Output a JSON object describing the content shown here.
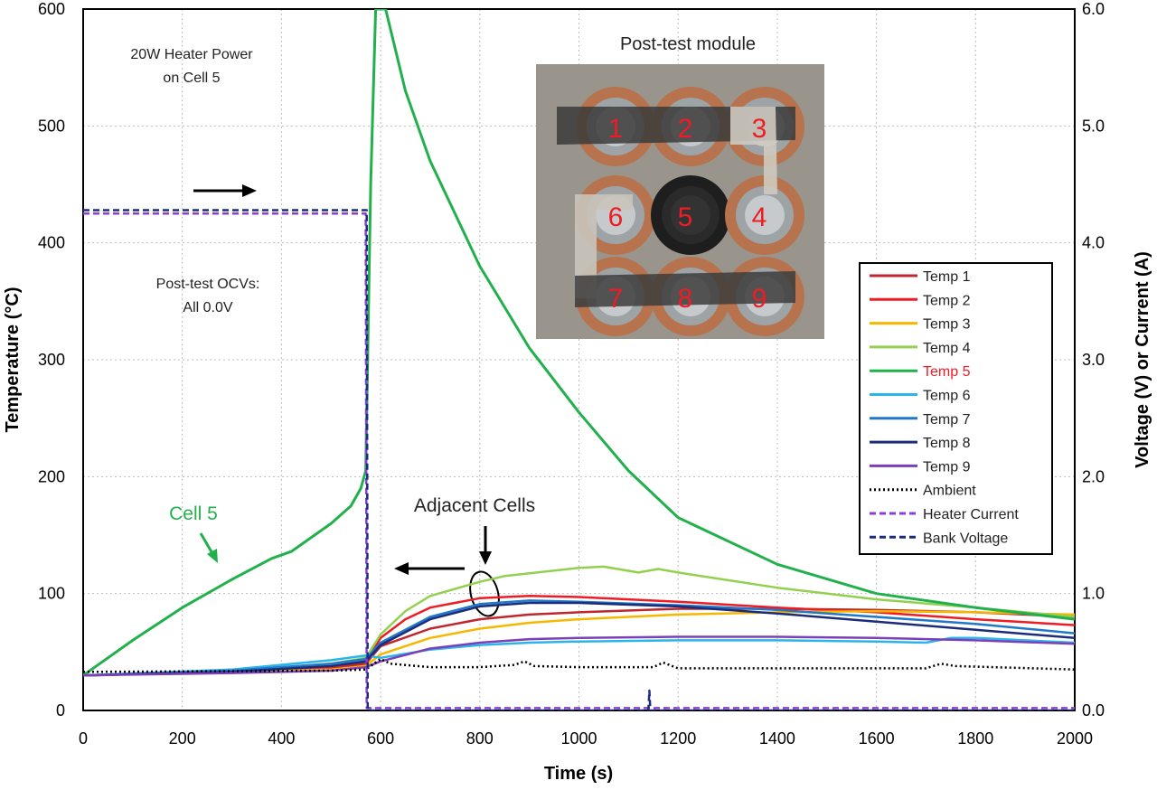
{
  "chart_data": {
    "type": "line",
    "xlabel": "Time (s)",
    "ylabel": "Temperature (°C)",
    "y2label": "Voltage (V) or Current (A)",
    "xlim": [
      0,
      2000
    ],
    "ylim": [
      0,
      600
    ],
    "y2lim": [
      0,
      6
    ],
    "x_ticks": [
      0,
      200,
      400,
      600,
      800,
      1000,
      1200,
      1400,
      1600,
      1800,
      2000
    ],
    "y_ticks": [
      0,
      100,
      200,
      300,
      400,
      500,
      600
    ],
    "y2_tick_labels": [
      "0.0",
      "1.0",
      "2.0",
      "3.0",
      "4.0",
      "5.0",
      "6.0"
    ],
    "grid": true,
    "legend_position": "right",
    "series": [
      {
        "name": "Temp 1",
        "axis": "left",
        "color": "#c0262d",
        "dash": "solid",
        "points": [
          [
            0,
            30
          ],
          [
            300,
            33
          ],
          [
            500,
            36
          ],
          [
            570,
            40
          ],
          [
            600,
            55
          ],
          [
            700,
            70
          ],
          [
            800,
            78
          ],
          [
            900,
            82
          ],
          [
            1000,
            84
          ],
          [
            1200,
            87
          ],
          [
            1400,
            87
          ],
          [
            1600,
            86
          ],
          [
            1800,
            84
          ],
          [
            2000,
            80
          ]
        ]
      },
      {
        "name": "Temp 2",
        "axis": "left",
        "color": "#ee1c25",
        "dash": "solid",
        "points": [
          [
            0,
            30
          ],
          [
            300,
            33
          ],
          [
            500,
            37
          ],
          [
            570,
            42
          ],
          [
            600,
            62
          ],
          [
            650,
            78
          ],
          [
            700,
            88
          ],
          [
            800,
            96
          ],
          [
            900,
            98
          ],
          [
            1000,
            97
          ],
          [
            1200,
            93
          ],
          [
            1400,
            88
          ],
          [
            1600,
            84
          ],
          [
            1800,
            78
          ],
          [
            2000,
            73
          ]
        ]
      },
      {
        "name": "Temp 3",
        "axis": "left",
        "color": "#f5b700",
        "dash": "solid",
        "points": [
          [
            0,
            30
          ],
          [
            300,
            33
          ],
          [
            500,
            35
          ],
          [
            570,
            38
          ],
          [
            600,
            48
          ],
          [
            700,
            62
          ],
          [
            800,
            70
          ],
          [
            900,
            75
          ],
          [
            1000,
            78
          ],
          [
            1200,
            82
          ],
          [
            1400,
            84
          ],
          [
            1600,
            85
          ],
          [
            1800,
            84
          ],
          [
            2000,
            82
          ]
        ]
      },
      {
        "name": "Temp 4",
        "axis": "left",
        "color": "#92d050",
        "dash": "solid",
        "points": [
          [
            0,
            30
          ],
          [
            300,
            34
          ],
          [
            500,
            40
          ],
          [
            570,
            45
          ],
          [
            600,
            65
          ],
          [
            650,
            85
          ],
          [
            700,
            98
          ],
          [
            800,
            110
          ],
          [
            850,
            115
          ],
          [
            1000,
            122
          ],
          [
            1050,
            123
          ],
          [
            1120,
            118
          ],
          [
            1160,
            121
          ],
          [
            1200,
            118
          ],
          [
            1400,
            105
          ],
          [
            1600,
            95
          ],
          [
            1800,
            88
          ],
          [
            2000,
            80
          ]
        ]
      },
      {
        "name": "Temp 5",
        "axis": "left",
        "color": "#22b04c",
        "dash": "solid",
        "points": [
          [
            0,
            30
          ],
          [
            50,
            45
          ],
          [
            100,
            60
          ],
          [
            200,
            88
          ],
          [
            300,
            112
          ],
          [
            380,
            130
          ],
          [
            420,
            136
          ],
          [
            500,
            160
          ],
          [
            540,
            175
          ],
          [
            560,
            190
          ],
          [
            570,
            205
          ],
          [
            580,
            450
          ],
          [
            590,
            600
          ],
          [
            610,
            600
          ],
          [
            650,
            530
          ],
          [
            700,
            470
          ],
          [
            800,
            380
          ],
          [
            900,
            310
          ],
          [
            1000,
            255
          ],
          [
            1100,
            205
          ],
          [
            1200,
            165
          ],
          [
            1400,
            125
          ],
          [
            1600,
            100
          ],
          [
            1800,
            88
          ],
          [
            2000,
            78
          ]
        ]
      },
      {
        "name": "Temp 6",
        "axis": "left",
        "color": "#29b5ea",
        "dash": "solid",
        "points": [
          [
            0,
            30
          ],
          [
            300,
            35
          ],
          [
            500,
            43
          ],
          [
            570,
            47
          ],
          [
            600,
            45
          ],
          [
            700,
            52
          ],
          [
            800,
            56
          ],
          [
            900,
            58
          ],
          [
            1000,
            59
          ],
          [
            1200,
            60
          ],
          [
            1400,
            60
          ],
          [
            1600,
            59
          ],
          [
            1700,
            58
          ],
          [
            1750,
            62
          ],
          [
            1800,
            62
          ],
          [
            2000,
            58
          ]
        ]
      },
      {
        "name": "Temp 7",
        "axis": "left",
        "color": "#1f78c8",
        "dash": "solid",
        "points": [
          [
            0,
            30
          ],
          [
            300,
            34
          ],
          [
            500,
            40
          ],
          [
            570,
            44
          ],
          [
            600,
            58
          ],
          [
            700,
            80
          ],
          [
            800,
            91
          ],
          [
            900,
            94
          ],
          [
            1000,
            93
          ],
          [
            1200,
            90
          ],
          [
            1400,
            86
          ],
          [
            1600,
            80
          ],
          [
            1800,
            74
          ],
          [
            2000,
            66
          ]
        ]
      },
      {
        "name": "Temp 8",
        "axis": "left",
        "color": "#1b2d7a",
        "dash": "solid",
        "points": [
          [
            0,
            30
          ],
          [
            300,
            33
          ],
          [
            500,
            38
          ],
          [
            570,
            42
          ],
          [
            600,
            56
          ],
          [
            700,
            78
          ],
          [
            800,
            89
          ],
          [
            900,
            92
          ],
          [
            1000,
            92
          ],
          [
            1200,
            89
          ],
          [
            1400,
            83
          ],
          [
            1600,
            76
          ],
          [
            1800,
            69
          ],
          [
            2000,
            62
          ]
        ]
      },
      {
        "name": "Temp 9",
        "axis": "left",
        "color": "#7d3fb8",
        "dash": "solid",
        "points": [
          [
            0,
            30
          ],
          [
            300,
            32
          ],
          [
            500,
            34
          ],
          [
            570,
            37
          ],
          [
            600,
            42
          ],
          [
            700,
            53
          ],
          [
            800,
            58
          ],
          [
            900,
            61
          ],
          [
            1000,
            62
          ],
          [
            1200,
            63
          ],
          [
            1400,
            63
          ],
          [
            1600,
            62
          ],
          [
            1800,
            60
          ],
          [
            2000,
            57
          ]
        ]
      },
      {
        "name": "Ambient",
        "axis": "left",
        "color": "#000000",
        "dash": "dotted",
        "points": [
          [
            0,
            33
          ],
          [
            500,
            34
          ],
          [
            570,
            35
          ],
          [
            600,
            44
          ],
          [
            620,
            40
          ],
          [
            700,
            37
          ],
          [
            800,
            37
          ],
          [
            870,
            39
          ],
          [
            890,
            42
          ],
          [
            910,
            38
          ],
          [
            1000,
            37
          ],
          [
            1150,
            37
          ],
          [
            1170,
            41
          ],
          [
            1200,
            36
          ],
          [
            1700,
            36
          ],
          [
            1730,
            40
          ],
          [
            1760,
            38
          ],
          [
            2000,
            35
          ]
        ]
      },
      {
        "name": "Heater Current",
        "axis": "right",
        "color": "#8b3fd9",
        "dash": "dashed",
        "points": [
          [
            0,
            4.25
          ],
          [
            570,
            4.25
          ],
          [
            572,
            0.02
          ],
          [
            2000,
            0.02
          ]
        ]
      },
      {
        "name": "Bank Voltage",
        "axis": "right",
        "color": "#1b2d7a",
        "dash": "dashed",
        "points": [
          [
            0,
            4.28
          ],
          [
            572,
            4.28
          ],
          [
            574,
            0.0
          ],
          [
            1140,
            0.0
          ],
          [
            1142,
            0.17
          ],
          [
            1144,
            0.0
          ],
          [
            2000,
            0.0
          ]
        ]
      }
    ],
    "legend_entries": [
      "Temp 1",
      "Temp 2",
      "Temp 3",
      "Temp 4",
      "Temp 5",
      "Temp 6",
      "Temp 7",
      "Temp 8",
      "Temp 9",
      "Ambient",
      "Heater Current",
      "Bank Voltage"
    ],
    "highlight_legend_entry": "Temp 5",
    "highlight_color": "#ee1c25",
    "annotations": {
      "heater_note_line1": "20W Heater Power",
      "heater_note_line2": "on Cell 5",
      "ocv_note_line1": "Post-test OCVs:",
      "ocv_note_line2": "All 0.0V",
      "cell5_label": "Cell 5",
      "adjacent_label": "Adjacent Cells",
      "inset_title": "Post-test module"
    },
    "inset_cell_numbers": [
      "1",
      "2",
      "3",
      "6",
      "5",
      "4",
      "7",
      "8",
      "9"
    ]
  }
}
